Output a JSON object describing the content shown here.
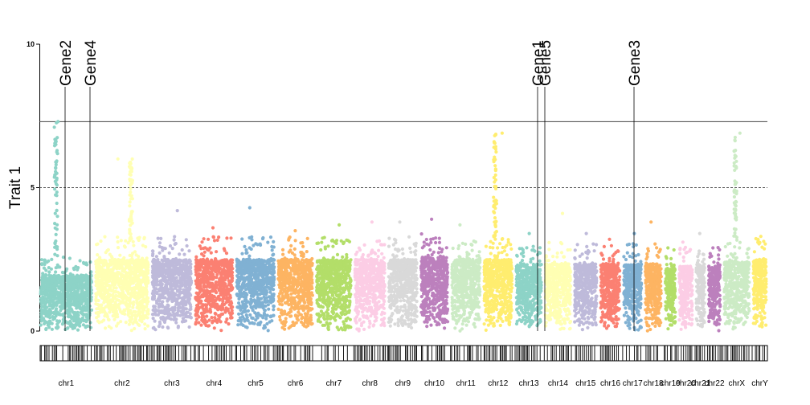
{
  "chart_data": {
    "type": "scatter",
    "ylabel": "Trait 1",
    "ylim": [
      0,
      10
    ],
    "yticks": [
      "0",
      "5",
      "10"
    ],
    "thresholds": {
      "genome_wide": 7.3,
      "suggestive": 5
    },
    "chromosomes": [
      {
        "name": "chr1",
        "color": "#8DD3C7",
        "base": 2.5,
        "peak": 7.3
      },
      {
        "name": "chr2",
        "color": "#FFFFB3",
        "base": 3.2,
        "peak": 6.0
      },
      {
        "name": "chr3",
        "color": "#BEBADA",
        "base": 3.2,
        "peak": 4.2
      },
      {
        "name": "chr4",
        "color": "#FB8072",
        "base": 3.2,
        "peak": 3.6
      },
      {
        "name": "chr5",
        "color": "#80B1D3",
        "base": 3.2,
        "peak": 4.3
      },
      {
        "name": "chr6",
        "color": "#FDB462",
        "base": 3.2,
        "peak": 3.5
      },
      {
        "name": "chr7",
        "color": "#B3DE69",
        "base": 3.2,
        "peak": 3.7
      },
      {
        "name": "chr8",
        "color": "#FCCDE5",
        "base": 3.2,
        "peak": 3.8
      },
      {
        "name": "chr9",
        "color": "#D9D9D9",
        "base": 3.2,
        "peak": 3.8
      },
      {
        "name": "chr10",
        "color": "#BC80BD",
        "base": 3.3,
        "peak": 3.9
      },
      {
        "name": "chr11",
        "color": "#CCEBC5",
        "base": 3.2,
        "peak": 3.7
      },
      {
        "name": "chr12",
        "color": "#FFED6F",
        "base": 3.2,
        "peak": 6.9
      },
      {
        "name": "chr13",
        "color": "#8DD3C7",
        "base": 3.0,
        "peak": 3.4
      },
      {
        "name": "chr14",
        "color": "#FFFFB3",
        "base": 3.0,
        "peak": 4.1
      },
      {
        "name": "chr15",
        "color": "#BEBADA",
        "base": 3.0,
        "peak": 3.4
      },
      {
        "name": "chr16",
        "color": "#FB8072",
        "base": 3.0,
        "peak": 3.2
      },
      {
        "name": "chr17",
        "color": "#80B1D3",
        "base": 3.0,
        "peak": 3.4
      },
      {
        "name": "chr18",
        "color": "#FDB462",
        "base": 3.0,
        "peak": 3.8
      },
      {
        "name": "chr19",
        "color": "#B3DE69",
        "base": 2.8,
        "peak": 2.9
      },
      {
        "name": "chr20",
        "color": "#FCCDE5",
        "base": 2.9,
        "peak": 3.1
      },
      {
        "name": "chr21",
        "color": "#D9D9D9",
        "base": 3.0,
        "peak": 3.4
      },
      {
        "name": "chr22",
        "color": "#BC80BD",
        "base": 2.9,
        "peak": 2.9
      },
      {
        "name": "chrX",
        "color": "#CCEBC5",
        "base": 3.1,
        "peak": 6.9
      },
      {
        "name": "chrY",
        "color": "#FFED6F",
        "base": 3.2,
        "peak": 3.3
      }
    ],
    "annotations": [
      {
        "label": "Gene2",
        "chromosome": "chr1"
      },
      {
        "label": "Gene4",
        "chromosome": "chr1"
      },
      {
        "label": "Gene1",
        "chromosome": "chr13"
      },
      {
        "label": "Gene5",
        "chromosome": "chr13"
      },
      {
        "label": "Gene3",
        "chromosome": "chr17"
      }
    ]
  }
}
